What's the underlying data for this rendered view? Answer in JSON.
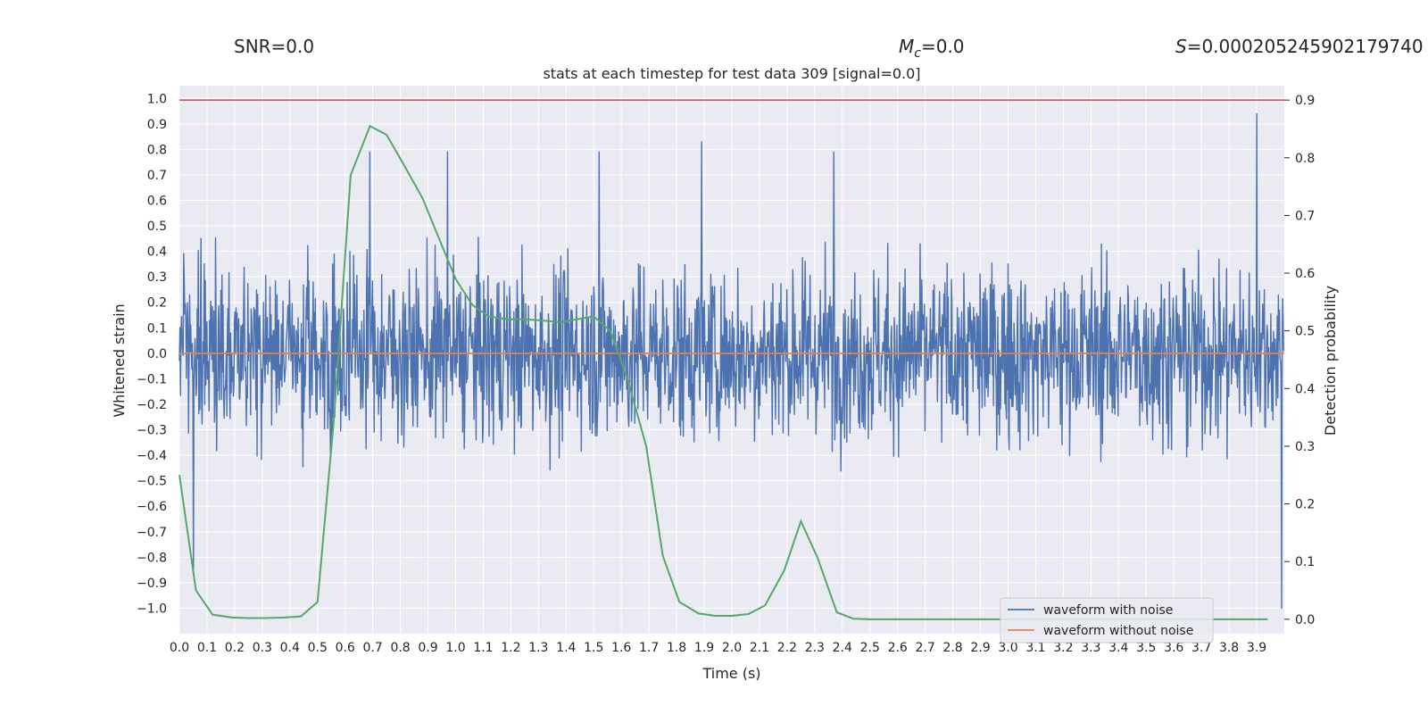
{
  "header": {
    "snr": "SNR=0.0",
    "mc_symbol": "M",
    "mc_sub": "c",
    "mc_value": "=0.0",
    "s_symbol": "S",
    "s_value": "=0.000205245902179740"
  },
  "chart_data": {
    "type": "line",
    "title": "stats at each timestep for test data 309 [signal=0.0]",
    "xlabel": "Time (s)",
    "ylabel_left": "Whitened strain",
    "ylabel_right": "Detection probability",
    "xlim": [
      0.0,
      4.0
    ],
    "ylim_left": [
      -1.1,
      1.05
    ],
    "ylim_right": [
      -0.025,
      0.925
    ],
    "x_ticks": [
      "0.0",
      "0.1",
      "0.2",
      "0.3",
      "0.4",
      "0.5",
      "0.6",
      "0.7",
      "0.8",
      "0.9",
      "1.0",
      "1.1",
      "1.2",
      "1.3",
      "1.4",
      "1.5",
      "1.6",
      "1.7",
      "1.8",
      "1.9",
      "2.0",
      "2.1",
      "2.2",
      "2.3",
      "2.4",
      "2.5",
      "2.6",
      "2.7",
      "2.8",
      "2.9",
      "3.0",
      "3.1",
      "3.2",
      "3.3",
      "3.4",
      "3.5",
      "3.6",
      "3.7",
      "3.8",
      "3.9"
    ],
    "y_ticks_left": [
      "1.0",
      "0.9",
      "0.8",
      "0.7",
      "0.6",
      "0.5",
      "0.4",
      "0.3",
      "0.2",
      "0.1",
      "0.0",
      "−0.1",
      "−0.2",
      "−0.3",
      "−0.4",
      "−0.5",
      "−0.6",
      "−0.7",
      "−0.8",
      "−0.9",
      "−1.0"
    ],
    "y_ticks_right": [
      "0.9",
      "0.8",
      "0.7",
      "0.6",
      "0.5",
      "0.4",
      "0.3",
      "0.2",
      "0.1",
      "0.0"
    ],
    "threshold": {
      "axis": "right",
      "value": 0.9,
      "color": "#c44e52"
    },
    "series": [
      {
        "name": "waveform with noise",
        "axis": "left",
        "color": "#4c72b0",
        "kind": "noise",
        "samples": 2048,
        "envelope_pos": 0.55,
        "envelope_neg": 0.6,
        "peaks": [
          [
            3.9,
            0.94
          ],
          [
            3.99,
            -1.0
          ],
          [
            0.05,
            -0.83
          ],
          [
            0.69,
            0.79
          ],
          [
            0.97,
            0.79
          ],
          [
            1.52,
            0.79
          ],
          [
            1.89,
            0.83
          ],
          [
            2.37,
            0.79
          ],
          [
            0.05,
            -0.85
          ]
        ]
      },
      {
        "name": "waveform without noise",
        "axis": "left",
        "color": "#dd8452",
        "kind": "flat",
        "value": 0.0
      },
      {
        "name": "detection probability",
        "axis": "right",
        "color": "#55a868",
        "kind": "line",
        "x": [
          0.0,
          0.06,
          0.12,
          0.19,
          0.25,
          0.31,
          0.38,
          0.44,
          0.5,
          0.56,
          0.62,
          0.69,
          0.75,
          0.81,
          0.88,
          0.94,
          1.0,
          1.06,
          1.12,
          1.19,
          1.25,
          1.31,
          1.38,
          1.44,
          1.5,
          1.56,
          1.62,
          1.69,
          1.75,
          1.81,
          1.88,
          1.94,
          2.0,
          2.06,
          2.12,
          2.19,
          2.25,
          2.31,
          2.38,
          2.44,
          2.5,
          2.56,
          2.62,
          2.69,
          2.75,
          2.81,
          2.88,
          2.94,
          3.0,
          3.06,
          3.12,
          3.19,
          3.25,
          3.31,
          3.38,
          3.44,
          3.5,
          3.56,
          3.62,
          3.69,
          3.75,
          3.81,
          3.88,
          3.94
        ],
        "y": [
          0.25,
          0.05,
          0.008,
          0.003,
          0.002,
          0.002,
          0.003,
          0.005,
          0.03,
          0.35,
          0.77,
          0.855,
          0.84,
          0.79,
          0.73,
          0.66,
          0.59,
          0.545,
          0.525,
          0.52,
          0.52,
          0.518,
          0.515,
          0.52,
          0.525,
          0.5,
          0.42,
          0.3,
          0.11,
          0.03,
          0.01,
          0.006,
          0.006,
          0.009,
          0.024,
          0.085,
          0.17,
          0.107,
          0.012,
          0.001,
          0.0,
          0.0,
          0.0,
          0.0,
          0.0,
          0.0,
          0.0,
          0.0,
          0.0,
          0.0,
          0.0,
          0.0,
          0.0,
          0.0,
          0.0,
          0.0,
          0.0,
          0.0,
          0.0,
          0.0,
          0.0,
          0.0,
          0.0,
          0.0
        ]
      }
    ],
    "legend": {
      "position": "lower-right",
      "entries": [
        {
          "label": "waveform with noise",
          "color": "#4c72b0"
        },
        {
          "label": "waveform without noise",
          "color": "#dd8452"
        }
      ]
    }
  }
}
